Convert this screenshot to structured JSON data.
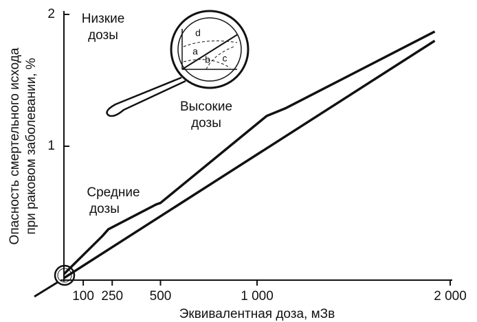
{
  "chart_data": {
    "type": "line",
    "xlabel": "Эквивалентная доза, мЗв",
    "ylabel": [
      "Опасность смертельного исхода",
      "при раковом заболевании, %"
    ],
    "xlim": [
      0,
      2000
    ],
    "ylim": [
      0,
      2
    ],
    "xticks": [
      100,
      250,
      500,
      {
        "value": 1000,
        "label": "1 000"
      },
      {
        "value": 2000,
        "label": "2 000"
      }
    ],
    "yticks": [
      1,
      2
    ],
    "series": [
      {
        "color": "#111111",
        "x": [
          0,
          200,
          230,
          480,
          500,
          1050,
          1150,
          1920
        ],
        "values": [
          0.03,
          0.32,
          0.37,
          0.56,
          0.57,
          1.23,
          1.29,
          1.87
        ]
      },
      {
        "color": "#111111",
        "x": [
          0,
          1920
        ],
        "values": [
          0,
          1.8
        ]
      }
    ],
    "annotations": [
      [
        "Низкие",
        "дозы"
      ],
      [
        "Средние",
        "дозы"
      ],
      [
        "Высокие",
        "дозы"
      ]
    ],
    "inset_labels": [
      "d",
      "a",
      "b",
      "c"
    ]
  }
}
